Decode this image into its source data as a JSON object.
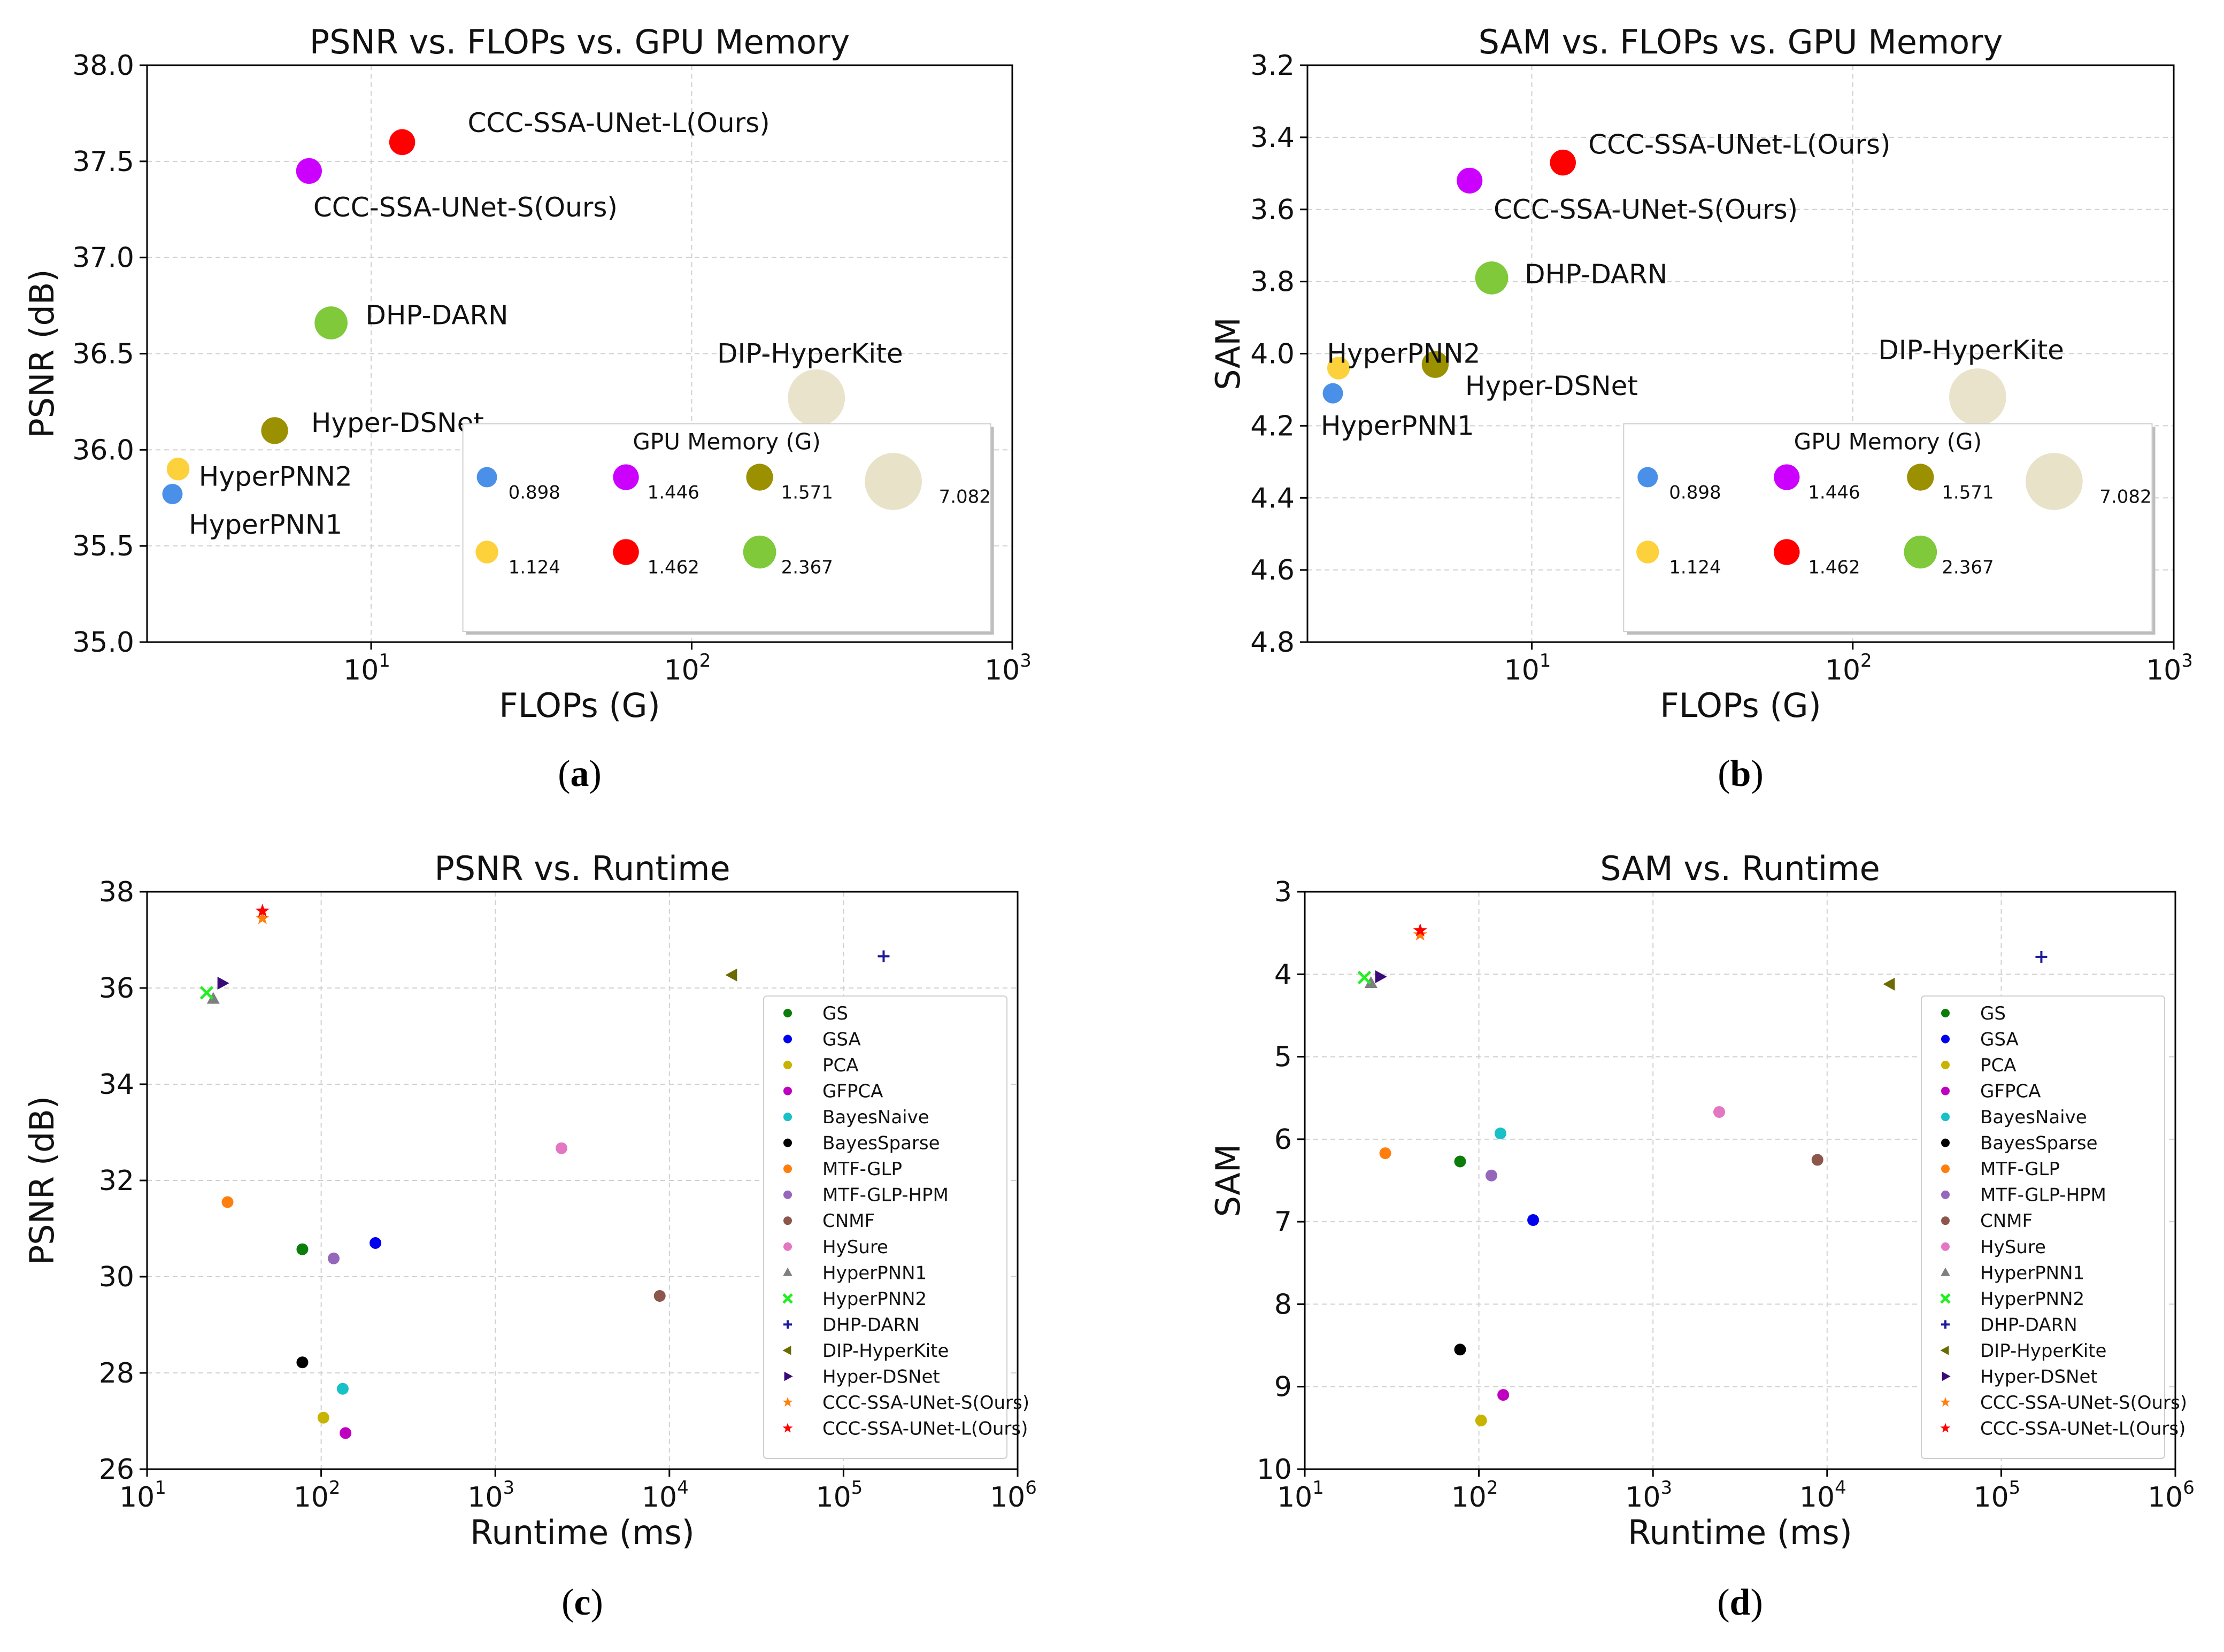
{
  "panel_letters": [
    "a",
    "b",
    "c",
    "d"
  ],
  "colors": {
    "HyperPNN1": "#4a90e8",
    "HyperPNN2": "#fcd13c",
    "CCC-SSA-UNet-S(Ours)": "#cc00ff",
    "CCC-SSA-UNet-L(Ours)": "#ff0000",
    "Hyper-DSNet": "#9a9000",
    "DHP-DARN": "#7fc93a",
    "DIP-HyperKite": "#e8e2c8"
  },
  "chart_data": [
    {
      "type": "scatter",
      "title": "PSNR vs. FLOPs vs. GPU Memory",
      "xlabel": "FLOPs (G)",
      "ylabel": "PSNR (dB)",
      "xscale": "log",
      "xlim": [
        2,
        1000
      ],
      "ylim": [
        35.0,
        38.0
      ],
      "y_inverted": false,
      "xticks": [
        {
          "base": "10",
          "exp": "1",
          "v": 10
        },
        {
          "base": "10",
          "exp": "2",
          "v": 100
        },
        {
          "base": "10",
          "exp": "3",
          "v": 1000
        }
      ],
      "yticks": [
        "35.0",
        "35.5",
        "36.0",
        "36.5",
        "37.0",
        "37.5",
        "38.0"
      ],
      "ytick_values": [
        35.0,
        35.5,
        36.0,
        36.5,
        37.0,
        37.5,
        38.0
      ],
      "points": [
        {
          "name": "HyperPNN1",
          "x": 2.4,
          "y": 35.77,
          "memory_g": 0.898
        },
        {
          "name": "HyperPNN2",
          "x": 2.5,
          "y": 35.9,
          "memory_g": 1.124
        },
        {
          "name": "CCC-SSA-UNet-S(Ours)",
          "x": 6.4,
          "y": 37.45,
          "memory_g": 1.446
        },
        {
          "name": "CCC-SSA-UNet-L(Ours)",
          "x": 12.5,
          "y": 37.6,
          "memory_g": 1.462
        },
        {
          "name": "Hyper-DSNet",
          "x": 5.0,
          "y": 36.1,
          "memory_g": 1.571
        },
        {
          "name": "DHP-DARN",
          "x": 7.5,
          "y": 36.66,
          "memory_g": 2.367
        },
        {
          "name": "DIP-HyperKite",
          "x": 245,
          "y": 36.27,
          "memory_g": 7.082
        }
      ],
      "annotations": [
        {
          "text": "CCC-SSA-UNet-L(Ours)",
          "x": 20,
          "y": 37.7
        },
        {
          "text": "CCC-SSA-UNet-S(Ours)",
          "x": 6.6,
          "y": 37.26
        },
        {
          "text": "DHP-DARN",
          "x": 9.6,
          "y": 36.7
        },
        {
          "text": "Hyper-DSNet",
          "x": 6.5,
          "y": 36.14
        },
        {
          "text": "DIP-HyperKite",
          "x": 120,
          "y": 36.5
        },
        {
          "text": "HyperPNN2",
          "x": 2.9,
          "y": 35.86
        },
        {
          "text": "HyperPNN1",
          "x": 2.7,
          "y": 35.61
        }
      ],
      "legend": {
        "title": "GPU Memory (G)",
        "position": "lower-right",
        "entries": [
          {
            "label": "0.898",
            "name": "HyperPNN1"
          },
          {
            "label": "1.446",
            "name": "CCC-SSA-UNet-S(Ours)"
          },
          {
            "label": "1.571",
            "name": "Hyper-DSNet"
          },
          {
            "label": "7.082",
            "name": "DIP-HyperKite"
          },
          {
            "label": "1.124",
            "name": "HyperPNN2"
          },
          {
            "label": "1.462",
            "name": "CCC-SSA-UNet-L(Ours)"
          },
          {
            "label": "2.367",
            "name": "DHP-DARN"
          }
        ]
      },
      "caption": "a"
    },
    {
      "type": "scatter",
      "title": "SAM vs. FLOPs vs. GPU Memory",
      "xlabel": "FLOPs (G)",
      "ylabel": "SAM",
      "xscale": "log",
      "xlim": [
        2,
        1000
      ],
      "ylim": [
        3.2,
        4.8
      ],
      "y_inverted": true,
      "xticks": [
        {
          "base": "10",
          "exp": "1",
          "v": 10
        },
        {
          "base": "10",
          "exp": "2",
          "v": 100
        },
        {
          "base": "10",
          "exp": "3",
          "v": 1000
        }
      ],
      "yticks": [
        "3.2",
        "3.4",
        "3.6",
        "3.8",
        "4.0",
        "4.2",
        "4.4",
        "4.6",
        "4.8"
      ],
      "ytick_values": [
        3.2,
        3.4,
        3.6,
        3.8,
        4.0,
        4.2,
        4.4,
        4.6,
        4.8
      ],
      "points": [
        {
          "name": "HyperPNN1",
          "x": 2.4,
          "y": 4.11,
          "memory_g": 0.898
        },
        {
          "name": "HyperPNN2",
          "x": 2.5,
          "y": 4.04,
          "memory_g": 1.124
        },
        {
          "name": "CCC-SSA-UNet-S(Ours)",
          "x": 6.4,
          "y": 3.52,
          "memory_g": 1.446
        },
        {
          "name": "CCC-SSA-UNet-L(Ours)",
          "x": 12.5,
          "y": 3.47,
          "memory_g": 1.462
        },
        {
          "name": "Hyper-DSNet",
          "x": 5.0,
          "y": 4.03,
          "memory_g": 1.571
        },
        {
          "name": "DHP-DARN",
          "x": 7.5,
          "y": 3.79,
          "memory_g": 2.367
        },
        {
          "name": "DIP-HyperKite",
          "x": 245,
          "y": 4.12,
          "memory_g": 7.082
        }
      ],
      "annotations": [
        {
          "text": "CCC-SSA-UNet-L(Ours)",
          "x": 15,
          "y": 3.42
        },
        {
          "text": "CCC-SSA-UNet-S(Ours)",
          "x": 7.6,
          "y": 3.6
        },
        {
          "text": "DHP-DARN",
          "x": 9.5,
          "y": 3.78
        },
        {
          "text": "HyperPNN2",
          "x": 2.3,
          "y": 4.0
        },
        {
          "text": "Hyper-DSNet",
          "x": 6.2,
          "y": 4.09
        },
        {
          "text": "DIP-HyperKite",
          "x": 120,
          "y": 3.99
        },
        {
          "text": "HyperPNN1",
          "x": 2.2,
          "y": 4.2
        }
      ],
      "legend": {
        "title": "GPU Memory (G)",
        "position": "lower-right",
        "entries": [
          {
            "label": "0.898",
            "name": "HyperPNN1"
          },
          {
            "label": "1.446",
            "name": "CCC-SSA-UNet-S(Ours)"
          },
          {
            "label": "1.571",
            "name": "Hyper-DSNet"
          },
          {
            "label": "7.082",
            "name": "DIP-HyperKite"
          },
          {
            "label": "1.124",
            "name": "HyperPNN2"
          },
          {
            "label": "1.462",
            "name": "CCC-SSA-UNet-L(Ours)"
          },
          {
            "label": "2.367",
            "name": "DHP-DARN"
          }
        ]
      },
      "caption": "b"
    },
    {
      "type": "scatter",
      "title": "PSNR vs. Runtime",
      "xlabel": "Runtime (ms)",
      "ylabel": "PSNR (dB)",
      "xscale": "log",
      "xlim": [
        10,
        1000000
      ],
      "ylim": [
        26,
        38
      ],
      "y_inverted": false,
      "xticks": [
        {
          "base": "10",
          "exp": "1",
          "v": 10
        },
        {
          "base": "10",
          "exp": "2",
          "v": 100
        },
        {
          "base": "10",
          "exp": "3",
          "v": 1000
        },
        {
          "base": "10",
          "exp": "4",
          "v": 10000
        },
        {
          "base": "10",
          "exp": "5",
          "v": 100000
        },
        {
          "base": "10",
          "exp": "6",
          "v": 1000000
        }
      ],
      "yticks": [
        "26",
        "28",
        "30",
        "32",
        "34",
        "36",
        "38"
      ],
      "ytick_values": [
        26,
        28,
        30,
        32,
        34,
        36,
        38
      ],
      "series": [
        {
          "name": "GS",
          "marker": "circle",
          "color": "#0a7d0a",
          "x": 78,
          "y": 30.57
        },
        {
          "name": "GSA",
          "marker": "circle",
          "color": "#0000ee",
          "x": 205,
          "y": 30.7
        },
        {
          "name": "PCA",
          "marker": "circle",
          "color": "#c8b400",
          "x": 103,
          "y": 27.07
        },
        {
          "name": "GFPCA",
          "marker": "circle",
          "color": "#c000c0",
          "x": 138,
          "y": 26.75
        },
        {
          "name": "BayesNaive",
          "marker": "circle",
          "color": "#18c0c8",
          "x": 133,
          "y": 27.67
        },
        {
          "name": "BayesSparse",
          "marker": "circle",
          "color": "#000000",
          "x": 78,
          "y": 28.22
        },
        {
          "name": "MTF-GLP",
          "marker": "circle",
          "color": "#ff7f0e",
          "x": 29,
          "y": 31.55
        },
        {
          "name": "MTF-GLP-HPM",
          "marker": "circle",
          "color": "#9467bd",
          "x": 118,
          "y": 30.38
        },
        {
          "name": "CNMF",
          "marker": "circle",
          "color": "#8c564b",
          "x": 8800,
          "y": 29.6
        },
        {
          "name": "HySure",
          "marker": "circle",
          "color": "#e377c2",
          "x": 2400,
          "y": 32.67
        },
        {
          "name": "HyperPNN1",
          "marker": "triangle-up",
          "color": "#7f7f7f",
          "x": 24,
          "y": 35.77
        },
        {
          "name": "HyperPNN2",
          "marker": "x",
          "color": "#22ee22",
          "x": 22,
          "y": 35.9
        },
        {
          "name": "DHP-DARN",
          "marker": "plus",
          "color": "#1a1a9a",
          "x": 170000,
          "y": 36.66
        },
        {
          "name": "DIP-HyperKite",
          "marker": "triangle-left",
          "color": "#6b6b00",
          "x": 23000,
          "y": 36.27
        },
        {
          "name": "Hyper-DSNet",
          "marker": "triangle-right",
          "color": "#3a0a7a",
          "x": 27,
          "y": 36.1
        },
        {
          "name": "CCC-SSA-UNet-S(Ours)",
          "marker": "star",
          "color": "#ff7f0e",
          "x": 46,
          "y": 37.45
        },
        {
          "name": "CCC-SSA-UNet-L(Ours)",
          "marker": "star",
          "color": "#ff0000",
          "x": 46,
          "y": 37.6
        }
      ],
      "legend_position": "right",
      "caption": "c"
    },
    {
      "type": "scatter",
      "title": "SAM vs. Runtime",
      "xlabel": "Runtime (ms)",
      "ylabel": "SAM",
      "xscale": "log",
      "xlim": [
        10,
        1000000
      ],
      "ylim": [
        3,
        10
      ],
      "y_inverted": true,
      "xticks": [
        {
          "base": "10",
          "exp": "1",
          "v": 10
        },
        {
          "base": "10",
          "exp": "2",
          "v": 100
        },
        {
          "base": "10",
          "exp": "3",
          "v": 1000
        },
        {
          "base": "10",
          "exp": "4",
          "v": 10000
        },
        {
          "base": "10",
          "exp": "5",
          "v": 100000
        },
        {
          "base": "10",
          "exp": "6",
          "v": 1000000
        }
      ],
      "yticks": [
        "3",
        "4",
        "5",
        "6",
        "7",
        "8",
        "9",
        "10"
      ],
      "ytick_values": [
        3,
        4,
        5,
        6,
        7,
        8,
        9,
        10
      ],
      "series": [
        {
          "name": "GS",
          "marker": "circle",
          "color": "#0a7d0a",
          "x": 78,
          "y": 6.27
        },
        {
          "name": "GSA",
          "marker": "circle",
          "color": "#0000ee",
          "x": 205,
          "y": 6.98
        },
        {
          "name": "PCA",
          "marker": "circle",
          "color": "#c8b400",
          "x": 103,
          "y": 9.41
        },
        {
          "name": "GFPCA",
          "marker": "circle",
          "color": "#c000c0",
          "x": 138,
          "y": 9.1
        },
        {
          "name": "BayesNaive",
          "marker": "circle",
          "color": "#18c0c8",
          "x": 133,
          "y": 5.93
        },
        {
          "name": "BayesSparse",
          "marker": "circle",
          "color": "#000000",
          "x": 78,
          "y": 8.55
        },
        {
          "name": "MTF-GLP",
          "marker": "circle",
          "color": "#ff7f0e",
          "x": 29,
          "y": 6.17
        },
        {
          "name": "MTF-GLP-HPM",
          "marker": "circle",
          "color": "#9467bd",
          "x": 118,
          "y": 6.44
        },
        {
          "name": "CNMF",
          "marker": "circle",
          "color": "#8c564b",
          "x": 8800,
          "y": 6.25
        },
        {
          "name": "HySure",
          "marker": "circle",
          "color": "#e377c2",
          "x": 2400,
          "y": 5.67
        },
        {
          "name": "HyperPNN1",
          "marker": "triangle-up",
          "color": "#7f7f7f",
          "x": 24,
          "y": 4.11
        },
        {
          "name": "HyperPNN2",
          "marker": "x",
          "color": "#22ee22",
          "x": 22,
          "y": 4.04
        },
        {
          "name": "DHP-DARN",
          "marker": "plus",
          "color": "#1a1a9a",
          "x": 170000,
          "y": 3.79
        },
        {
          "name": "DIP-HyperKite",
          "marker": "triangle-left",
          "color": "#6b6b00",
          "x": 23000,
          "y": 4.12
        },
        {
          "name": "Hyper-DSNet",
          "marker": "triangle-right",
          "color": "#3a0a7a",
          "x": 27,
          "y": 4.03
        },
        {
          "name": "CCC-SSA-UNet-S(Ours)",
          "marker": "star",
          "color": "#ff7f0e",
          "x": 46,
          "y": 3.52
        },
        {
          "name": "CCC-SSA-UNet-L(Ours)",
          "marker": "star",
          "color": "#ff0000",
          "x": 46,
          "y": 3.47
        }
      ],
      "legend_position": "right",
      "caption": "d"
    }
  ]
}
